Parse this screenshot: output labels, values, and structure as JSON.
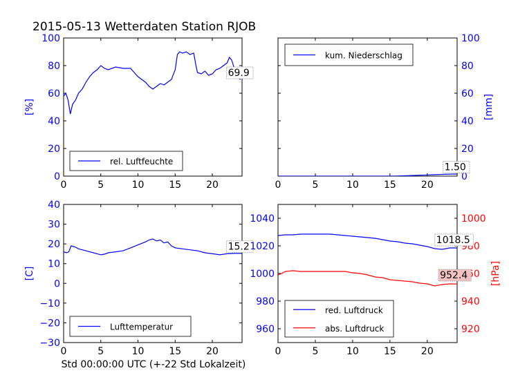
{
  "figure": {
    "title": "2015-05-13 Wetterdaten Station RJOB",
    "xlabel": "Std 00:00:00 UTC (+-22 Std Lokalzeit)"
  },
  "colors": {
    "blue": "#0000ff",
    "red": "#ff0000",
    "black": "#000000",
    "callout_red_bg": "#f4c2c2"
  },
  "chart_data": [
    {
      "id": "humidity",
      "type": "line",
      "xlim": [
        0,
        24
      ],
      "ylim": [
        0,
        100
      ],
      "xticks": [
        0,
        5,
        10,
        15,
        20
      ],
      "yticks": [
        0,
        20,
        40,
        60,
        80,
        100
      ],
      "xticklabels": [
        "0",
        "5",
        "10",
        "15",
        "20"
      ],
      "yticklabels": [
        "0",
        "20",
        "40",
        "60",
        "80",
        "100"
      ],
      "ylabel": "[%]",
      "ylabel_side": "left",
      "legend": "lower-center",
      "series": [
        {
          "name": "rel. Luftfeuchte",
          "color": "#0000ff",
          "x": [
            0,
            0.3,
            0.6,
            0.9,
            1.2,
            1.6,
            2,
            2.5,
            3,
            3.5,
            4,
            4.5,
            5,
            5.5,
            6,
            7,
            8,
            9,
            9.5,
            10,
            10.5,
            11,
            11.5,
            12,
            12.5,
            13,
            13.5,
            14,
            14.5,
            15,
            15.3,
            15.6,
            16,
            16.5,
            17,
            17.5,
            17.8,
            18,
            18.5,
            19,
            19.5,
            20,
            20.5,
            21,
            21.5,
            22,
            22.3,
            22.6,
            22.9,
            23.2,
            23.5,
            23.8
          ],
          "y": [
            58,
            60,
            55,
            45,
            52,
            55,
            60,
            63,
            68,
            72,
            75,
            77,
            80,
            78,
            77,
            79,
            78,
            78,
            75,
            72,
            70,
            68,
            65,
            63,
            65,
            67,
            66,
            68,
            70,
            77,
            88,
            90,
            89,
            90,
            88,
            89,
            80,
            75,
            74,
            76,
            73,
            74,
            77,
            78,
            80,
            82,
            86,
            84,
            79,
            74,
            71,
            70
          ]
        }
      ],
      "annotations": [
        {
          "text": "69.9",
          "x": 22.1,
          "y": 72.5,
          "bg": "#ffffff"
        }
      ]
    },
    {
      "id": "precip",
      "type": "line",
      "xlim": [
        0,
        24
      ],
      "ylim": [
        0,
        100
      ],
      "xticks": [
        0,
        5,
        10,
        15,
        20
      ],
      "yticks": [
        0,
        20,
        40,
        60,
        80,
        100
      ],
      "xticklabels": [
        "0",
        "5",
        "10",
        "15",
        "20"
      ],
      "yticklabels": [
        "0",
        "20",
        "40",
        "60",
        "80",
        "100"
      ],
      "ylabel": "[mm]",
      "ylabel_side": "right",
      "legend": "upper-center",
      "series": [
        {
          "name": "kum. Niederschlag",
          "color": "#0000ff",
          "x": [
            0,
            15,
            16,
            17,
            18,
            19,
            20,
            21,
            22,
            23,
            24
          ],
          "y": [
            0,
            0,
            0.1,
            0.25,
            0.45,
            0.65,
            0.85,
            1.05,
            1.25,
            1.4,
            1.5
          ]
        }
      ],
      "annotations": [
        {
          "text": "1.50",
          "x": 22.3,
          "y": 4.3,
          "bg": "#ffffff"
        }
      ]
    },
    {
      "id": "temperature",
      "type": "line",
      "xlim": [
        0,
        24
      ],
      "ylim": [
        -30,
        40
      ],
      "xticks": [
        0,
        5,
        10,
        15,
        20
      ],
      "yticks": [
        -30,
        -20,
        -10,
        0,
        10,
        20,
        30,
        40
      ],
      "xticklabels": [
        "0",
        "5",
        "10",
        "15",
        "20"
      ],
      "yticklabels": [
        "−30",
        "−20",
        "−10",
        "0",
        "10",
        "20",
        "30",
        "40"
      ],
      "ylabel": "[C]",
      "ylabel_side": "left",
      "legend": "lower-center",
      "series": [
        {
          "name": "Lufttemperatur",
          "color": "#0000ff",
          "x": [
            0,
            0.4,
            0.7,
            1,
            1.5,
            2,
            3,
            4,
            4.5,
            5,
            5.5,
            6,
            7,
            8,
            9,
            10,
            11,
            11.5,
            12,
            12.5,
            13,
            13.5,
            14,
            14.5,
            15,
            16,
            17,
            18,
            19,
            20,
            21,
            22,
            23,
            24
          ],
          "y": [
            16,
            15.5,
            16,
            19,
            18.5,
            17.5,
            16.5,
            15.5,
            15,
            14.5,
            14.8,
            15.5,
            16,
            16.5,
            18,
            19.5,
            21,
            22,
            22.5,
            21.5,
            22,
            20.5,
            21,
            19,
            18,
            17.5,
            17,
            16.5,
            15.5,
            15,
            14.5,
            15,
            15.2,
            15.2
          ]
        }
      ],
      "annotations": [
        {
          "text": "15.2",
          "x": 22.1,
          "y": 17,
          "bg": "#ffffff"
        }
      ]
    },
    {
      "id": "pressure",
      "type": "line",
      "xlim": [
        0,
        24
      ],
      "ylim": [
        950,
        1050
      ],
      "ylim_right": [
        910,
        1010
      ],
      "xticks": [
        0,
        5,
        10,
        15,
        20
      ],
      "yticks": [
        960,
        980,
        1000,
        1020,
        1040
      ],
      "yticks_right": [
        920,
        940,
        960,
        980,
        1000
      ],
      "xticklabels": [
        "0",
        "5",
        "10",
        "15",
        "20"
      ],
      "yticklabels": [
        "960",
        "980",
        "1000",
        "1020",
        "1040"
      ],
      "yticklabels_right": [
        "920",
        "940",
        "960",
        "980",
        "1000"
      ],
      "ylabel": "",
      "ylabel_right": "[hPa]",
      "legend": "lower-center",
      "series": [
        {
          "name": "red. Luftdruck",
          "color": "#0000ff",
          "axis": "left",
          "x": [
            0,
            1,
            2,
            3,
            4,
            5,
            6,
            7,
            8,
            9,
            10,
            11,
            12,
            13,
            14,
            15,
            16,
            17,
            18,
            19,
            20,
            21,
            22,
            23,
            24
          ],
          "y": [
            1027.5,
            1028,
            1028,
            1028.5,
            1028.5,
            1028.5,
            1028.5,
            1028.5,
            1028,
            1027.5,
            1027,
            1026.5,
            1026,
            1025.5,
            1024.5,
            1023.5,
            1023,
            1022,
            1021.5,
            1020.5,
            1019.5,
            1018,
            1017.5,
            1018.5,
            1018.5
          ]
        },
        {
          "name": "abs. Luftdruck",
          "color": "#ff0000",
          "axis": "right",
          "x": [
            0,
            0.5,
            1,
            2,
            3,
            4,
            5,
            6,
            7,
            8,
            9,
            10,
            11,
            12,
            13,
            14,
            15,
            16,
            17,
            18,
            19,
            20,
            21,
            22,
            23,
            24
          ],
          "y": [
            959,
            960,
            961.5,
            962,
            961.5,
            961.5,
            961.5,
            961.5,
            961.5,
            961.5,
            961.5,
            960.5,
            960,
            959,
            957.5,
            957,
            955.5,
            955,
            954.5,
            954,
            953,
            952.5,
            951,
            952,
            952.5,
            952.4
          ]
        }
      ],
      "annotations": [
        {
          "text": "1018.5",
          "x": 21.2,
          "y": 1022,
          "axis": "left",
          "bg": "#ffffff"
        },
        {
          "text": "952.4",
          "x": 21.7,
          "y": 956.5,
          "axis": "right",
          "bg": "#f4c2c2"
        }
      ]
    }
  ]
}
